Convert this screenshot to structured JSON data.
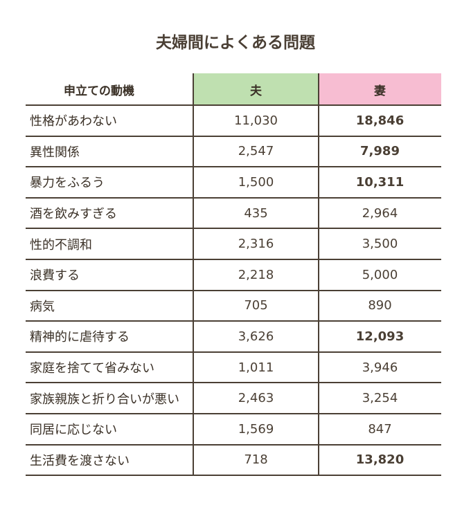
{
  "title": "夫婦間によくある問題",
  "chart_data": {
    "type": "table",
    "title": "夫婦間によくある問題",
    "columns": [
      "申立ての動機",
      "夫",
      "妻"
    ],
    "header_colors": {
      "夫": "#bfe0b0",
      "妻": "#f7bdd2"
    },
    "rows": [
      {
        "label": "性格があわない",
        "husband": "11,030",
        "wife": "18,846",
        "wife_bold": true
      },
      {
        "label": "異性関係",
        "husband": "2,547",
        "wife": "7,989",
        "wife_bold": true
      },
      {
        "label": "暴力をふるう",
        "husband": "1,500",
        "wife": "10,311",
        "wife_bold": true
      },
      {
        "label": "酒を飲みすぎる",
        "husband": "435",
        "wife": "2,964",
        "wife_bold": false
      },
      {
        "label": "性的不調和",
        "husband": "2,316",
        "wife": "3,500",
        "wife_bold": false
      },
      {
        "label": "浪費する",
        "husband": "2,218",
        "wife": "5,000",
        "wife_bold": false
      },
      {
        "label": "病気",
        "husband": "705",
        "wife": "890",
        "wife_bold": false
      },
      {
        "label": "精神的に虐待する",
        "husband": "3,626",
        "wife": "12,093",
        "wife_bold": true
      },
      {
        "label": "家庭を捨てて省みない",
        "husband": "1,011",
        "wife": "3,946",
        "wife_bold": false
      },
      {
        "label": "家族親族と折り合いが悪い",
        "husband": "2,463",
        "wife": "3,254",
        "wife_bold": false
      },
      {
        "label": "同居に応じない",
        "husband": "1,569",
        "wife": "847",
        "wife_bold": false
      },
      {
        "label": "生活費を渡さない",
        "husband": "718",
        "wife": "13,820",
        "wife_bold": true
      }
    ]
  }
}
